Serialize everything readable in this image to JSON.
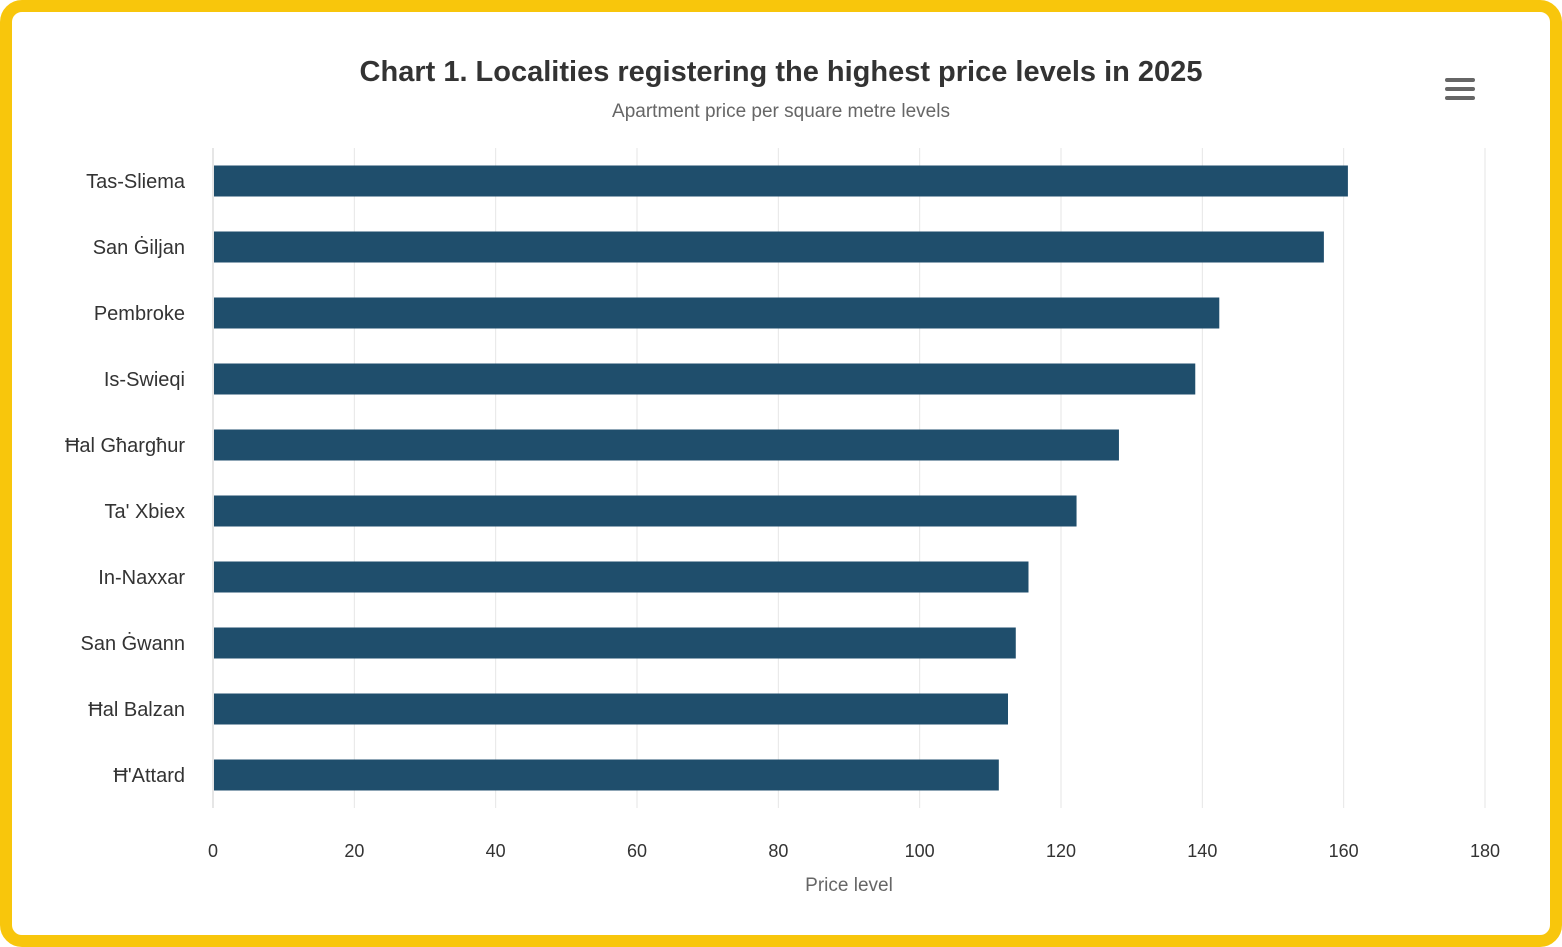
{
  "chart_data": {
    "type": "bar",
    "orientation": "horizontal",
    "title": "Chart 1. Localities registering the highest price levels in 2025",
    "subtitle": "Apartment price per square metre levels",
    "xlabel": "Price level",
    "ylabel": "",
    "categories": [
      "Tas-Sliema",
      "San Ġiljan",
      "Pembroke",
      "Is-Swieqi",
      "Ħal Għargħur",
      "Ta' Xbiex",
      "In-Naxxar",
      "San Ġwann",
      "Ħal Balzan",
      "Ħ'Attard"
    ],
    "values": [
      160.6,
      157.2,
      142.4,
      139.0,
      128.2,
      122.2,
      115.4,
      113.6,
      112.5,
      111.2
    ],
    "xlim": [
      0,
      180
    ],
    "ticks": [
      0,
      20,
      40,
      60,
      80,
      100,
      120,
      140,
      160,
      180
    ],
    "grid": true,
    "bar_color": "#1f4e6c"
  },
  "menu_icon": "hamburger-menu-icon"
}
